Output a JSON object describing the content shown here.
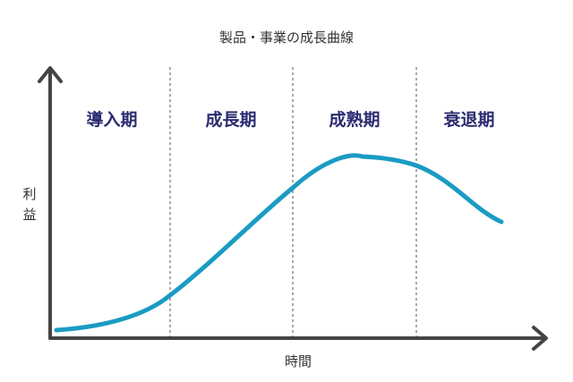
{
  "title": "製品・事業の成長曲線",
  "phases": [
    {
      "label": "導入期"
    },
    {
      "label": "成長期"
    },
    {
      "label": "成熟期"
    },
    {
      "label": "衰退期"
    }
  ],
  "axes": {
    "x_label": "時間",
    "y_label_top": "利",
    "y_label_bottom": "益"
  },
  "colors": {
    "curve": "#1a9bc3",
    "axis": "#444444",
    "phase_text": "#2b2b70"
  }
}
